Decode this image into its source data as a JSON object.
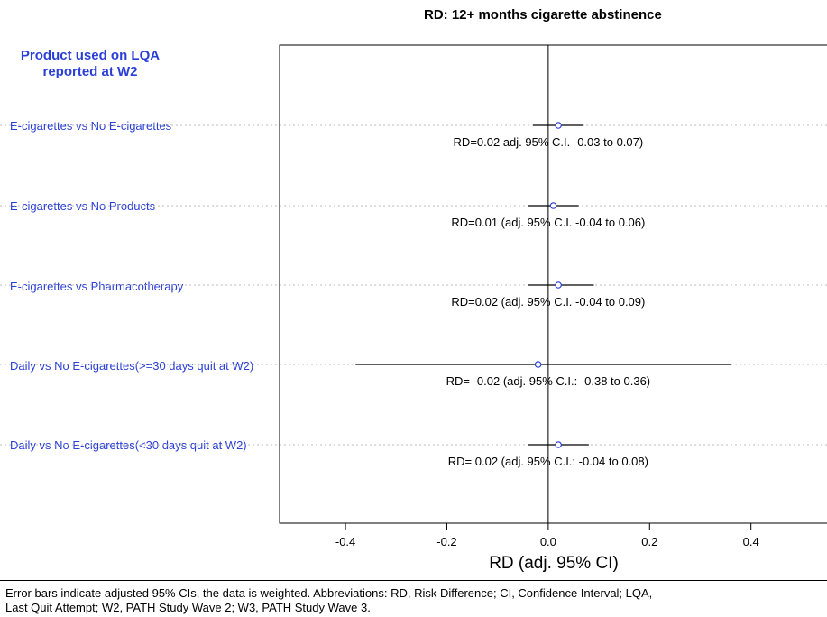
{
  "chart_data": {
    "type": "forest",
    "title": "RD: 12+ months cigarette abstinence",
    "header": "Product used on LQA reported at W2",
    "xlabel": "RD (adj. 95% CI)",
    "xlim": [
      -0.53,
      0.55
    ],
    "xticks": [
      -0.4,
      -0.2,
      0.0,
      0.2,
      0.4
    ],
    "xtick_labels": [
      "-0.4",
      "-0.2",
      "0.0",
      "0.2",
      "0.4"
    ],
    "reference_line": 0,
    "grid": "dotted-horizontal",
    "rows": [
      {
        "label": "E-cigarettes vs No E-cigarettes",
        "estimate": 0.02,
        "lower": -0.03,
        "upper": 0.07,
        "annotation": "RD=0.02 adj. 95% C.I. -0.03 to 0.07)"
      },
      {
        "label": "E-cigarettes vs No Products",
        "estimate": 0.01,
        "lower": -0.04,
        "upper": 0.06,
        "annotation": "RD=0.01 (adj. 95% C.I. -0.04 to 0.06)"
      },
      {
        "label": "E-cigarettes vs Pharmacotherapy",
        "estimate": 0.02,
        "lower": -0.04,
        "upper": 0.09,
        "annotation": "RD=0.02 (adj. 95% C.I. -0.04 to 0.09)"
      },
      {
        "label": "Daily vs No E-cigarettes(>=30 days quit at W2)",
        "estimate": -0.02,
        "lower": -0.38,
        "upper": 0.36,
        "annotation": "RD= -0.02 (adj. 95% C.I.: -0.38 to 0.36)"
      },
      {
        "label": "Daily vs No E-cigarettes(<30 days quit at W2)",
        "estimate": 0.02,
        "lower": -0.04,
        "upper": 0.08,
        "annotation": "RD= 0.02 (adj. 95% C.I.: -0.04 to 0.08)"
      }
    ]
  },
  "header_line1": "Product used on LQA",
  "header_line2": "reported at W2",
  "footnote_line1": "Error bars indicate adjusted 95% CIs, the data is weighted. Abbreviations: RD, Risk Difference; CI, Confidence Interval; LQA,",
  "footnote_line2": "Last Quit Attempt; W2, PATH Study Wave 2; W3, PATH Study Wave 3."
}
